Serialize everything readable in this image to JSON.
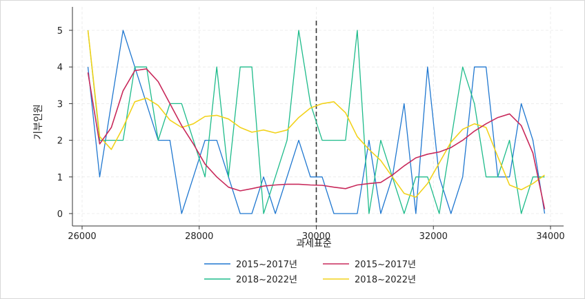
{
  "chart_data": {
    "type": "line",
    "title": "",
    "xlabel": "과세표준",
    "ylabel": "기부인원",
    "xlim": [
      26000,
      34000
    ],
    "ylim": [
      0,
      5
    ],
    "xticks": [
      26000,
      28000,
      30000,
      32000,
      34000
    ],
    "yticks": [
      0,
      1,
      2,
      3,
      4,
      5
    ],
    "grid": true,
    "cutoff_x": 30000,
    "legend_position": "bottom",
    "series": [
      {
        "name": "2015~2017년",
        "color": "#1f77d0",
        "style": "raw",
        "x": [
          26100,
          26300,
          26500,
          26700,
          26900,
          27100,
          27300,
          27500,
          27700,
          27900,
          28100,
          28300,
          28500,
          28700,
          28900,
          29100,
          29300,
          29500,
          29700,
          29900,
          30100,
          30300,
          30500,
          30700,
          30900,
          31100,
          31300,
          31500,
          31700,
          31900,
          32100,
          32300,
          32500,
          32700,
          32900,
          33100,
          33300,
          33500,
          33700,
          33900
        ],
        "values": [
          4,
          1,
          3,
          5,
          4,
          3,
          2,
          2,
          0,
          1,
          2,
          2,
          1,
          0,
          0,
          1,
          0,
          1,
          2,
          1,
          1,
          0,
          0,
          0,
          2,
          0,
          1,
          3,
          0,
          4,
          1,
          0,
          1,
          4,
          4,
          1,
          1,
          3,
          2,
          0
        ]
      },
      {
        "name": "2018~2022년",
        "color": "#1dbb8a",
        "style": "raw",
        "x": [
          26100,
          26300,
          26500,
          26700,
          26900,
          27100,
          27300,
          27500,
          27700,
          27900,
          28100,
          28300,
          28500,
          28700,
          28900,
          29100,
          29300,
          29500,
          29700,
          29900,
          30100,
          30300,
          30500,
          30700,
          30900,
          31100,
          31300,
          31500,
          31700,
          31900,
          32100,
          32300,
          32500,
          32700,
          32900,
          33100,
          33300,
          33500,
          33700,
          33900
        ],
        "values": [
          5,
          2,
          2,
          2,
          4,
          4,
          2,
          3,
          3,
          2,
          1,
          4,
          1,
          4,
          4,
          0,
          1,
          2,
          5,
          3,
          2,
          2,
          2,
          5,
          0,
          2,
          1,
          0,
          1,
          1,
          0,
          2,
          4,
          3,
          1,
          1,
          2,
          0,
          1,
          1
        ]
      },
      {
        "name": "2015~2017년",
        "color": "#c8285a",
        "style": "smooth",
        "x": [
          26100,
          26300,
          26500,
          26700,
          26900,
          27100,
          27300,
          27500,
          27700,
          27900,
          28100,
          28300,
          28500,
          28700,
          28900,
          29100,
          29300,
          29500,
          29700,
          29900,
          30100,
          30300,
          30500,
          30700,
          30900,
          31100,
          31300,
          31500,
          31700,
          31900,
          32100,
          32300,
          32500,
          32700,
          32900,
          33100,
          33300,
          33500,
          33700,
          33900
        ],
        "values": [
          3.85,
          1.9,
          2.35,
          3.35,
          3.9,
          3.95,
          3.6,
          3.0,
          2.4,
          1.9,
          1.35,
          1.0,
          0.72,
          0.62,
          0.68,
          0.75,
          0.78,
          0.8,
          0.8,
          0.78,
          0.77,
          0.72,
          0.68,
          0.78,
          0.82,
          0.85,
          1.05,
          1.3,
          1.52,
          1.62,
          1.68,
          1.8,
          2.0,
          2.25,
          2.45,
          2.62,
          2.72,
          2.4,
          1.65,
          0.12
        ]
      },
      {
        "name": "2018~2022년",
        "color": "#f2d21a",
        "style": "smooth",
        "x": [
          26100,
          26300,
          26500,
          26700,
          26900,
          27100,
          27300,
          27500,
          27700,
          27900,
          28100,
          28300,
          28500,
          28700,
          28900,
          29100,
          29300,
          29500,
          29700,
          29900,
          30100,
          30300,
          30500,
          30700,
          30900,
          31100,
          31300,
          31500,
          31700,
          31900,
          32100,
          32300,
          32500,
          32700,
          32900,
          33100,
          33300,
          33500,
          33700,
          33900
        ],
        "values": [
          5.0,
          2.1,
          1.75,
          2.35,
          3.05,
          3.15,
          2.95,
          2.55,
          2.35,
          2.45,
          2.65,
          2.68,
          2.58,
          2.35,
          2.22,
          2.28,
          2.2,
          2.28,
          2.62,
          2.88,
          3.0,
          3.05,
          2.75,
          2.1,
          1.75,
          1.45,
          1.0,
          0.55,
          0.45,
          0.82,
          1.38,
          1.95,
          2.3,
          2.45,
          2.35,
          1.55,
          0.78,
          0.65,
          0.82,
          1.05
        ]
      }
    ]
  }
}
